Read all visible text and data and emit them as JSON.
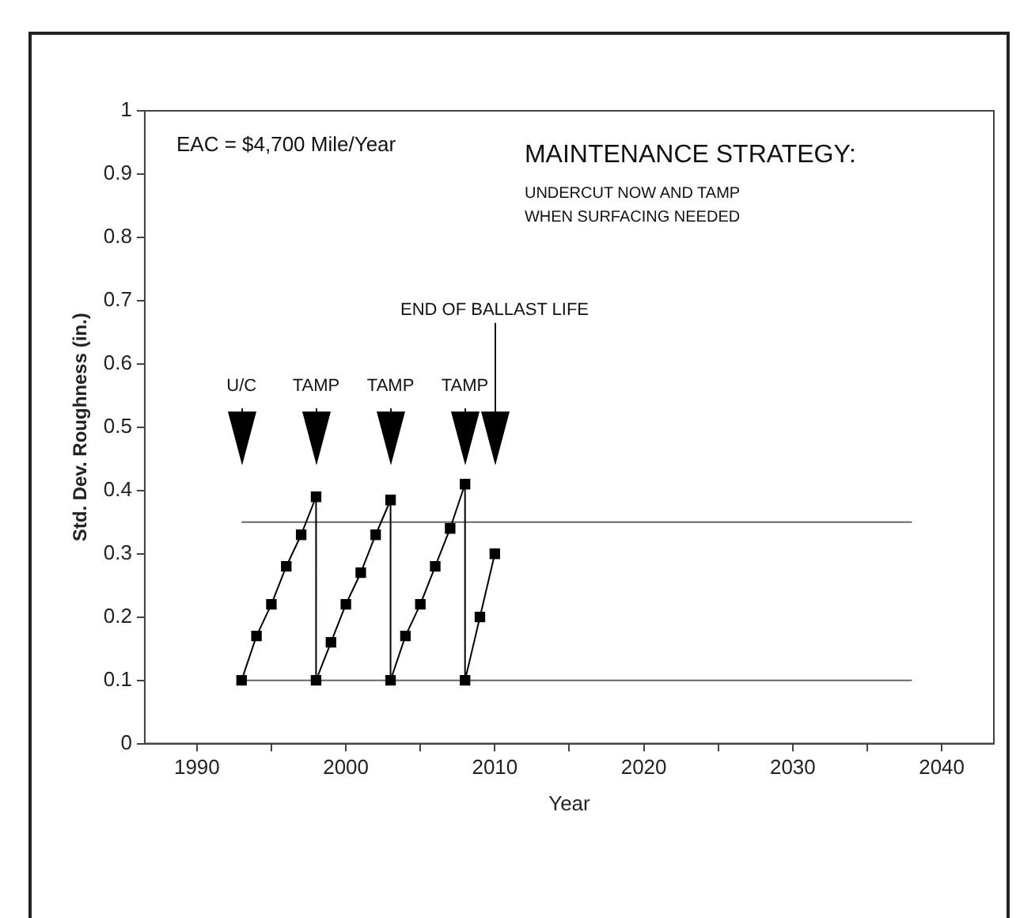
{
  "chart_data": {
    "type": "line",
    "title": "MAINTENANCE STRATEGY:",
    "subtitle": "UNDERCUT NOW AND TAMP WHEN SURFACING NEEDED",
    "xlabel": "Year",
    "ylabel": "Std. Dev. Roughness (in.)",
    "annotations": [
      "EAC = $4,700 Mile/Year",
      "U/C",
      "TAMP",
      "TAMP",
      "TAMP",
      "END OF BALLAST LIFE"
    ],
    "series": [
      {
        "x": [
          1993,
          1994,
          1995,
          1996,
          1997,
          1998,
          1998,
          1999,
          2000,
          2001,
          2002,
          2003,
          2003,
          2004,
          2005,
          2006,
          2007,
          2008,
          2008,
          2009,
          2010
        ],
        "values": [
          0.1,
          0.17,
          0.22,
          0.28,
          0.33,
          0.39,
          0.1,
          0.16,
          0.22,
          0.27,
          0.33,
          0.385,
          0.1,
          0.17,
          0.22,
          0.28,
          0.34,
          0.41,
          0.1,
          0.2,
          0.3
        ],
        "color": "#000000"
      },
      {
        "x": [
          1993,
          2038
        ],
        "values": [
          0.35,
          0.35
        ],
        "color": "#666666",
        "marker": "none"
      },
      {
        "x": [
          1993,
          2038
        ],
        "values": [
          0.1,
          0.1
        ],
        "color": "#666666",
        "marker": "none"
      }
    ],
    "xlim": [
      1986.5,
      2043.5
    ],
    "ylim": [
      0,
      1
    ],
    "xticks": [
      1990,
      {
        "value": 1995,
        "label": null
      },
      2000,
      {
        "value": 2005,
        "label": null
      },
      2010,
      {
        "value": 2015,
        "label": null
      },
      2020,
      {
        "value": 2025,
        "label": null
      },
      2030,
      {
        "value": 2035,
        "label": null
      },
      2040
    ],
    "yticks": [
      0,
      0.1,
      0.2,
      0.3,
      0.4,
      0.5,
      0.6,
      0.7,
      0.8,
      0.9,
      1
    ],
    "grid": false,
    "legend": false,
    "marker": "square",
    "line_style": "solid"
  }
}
